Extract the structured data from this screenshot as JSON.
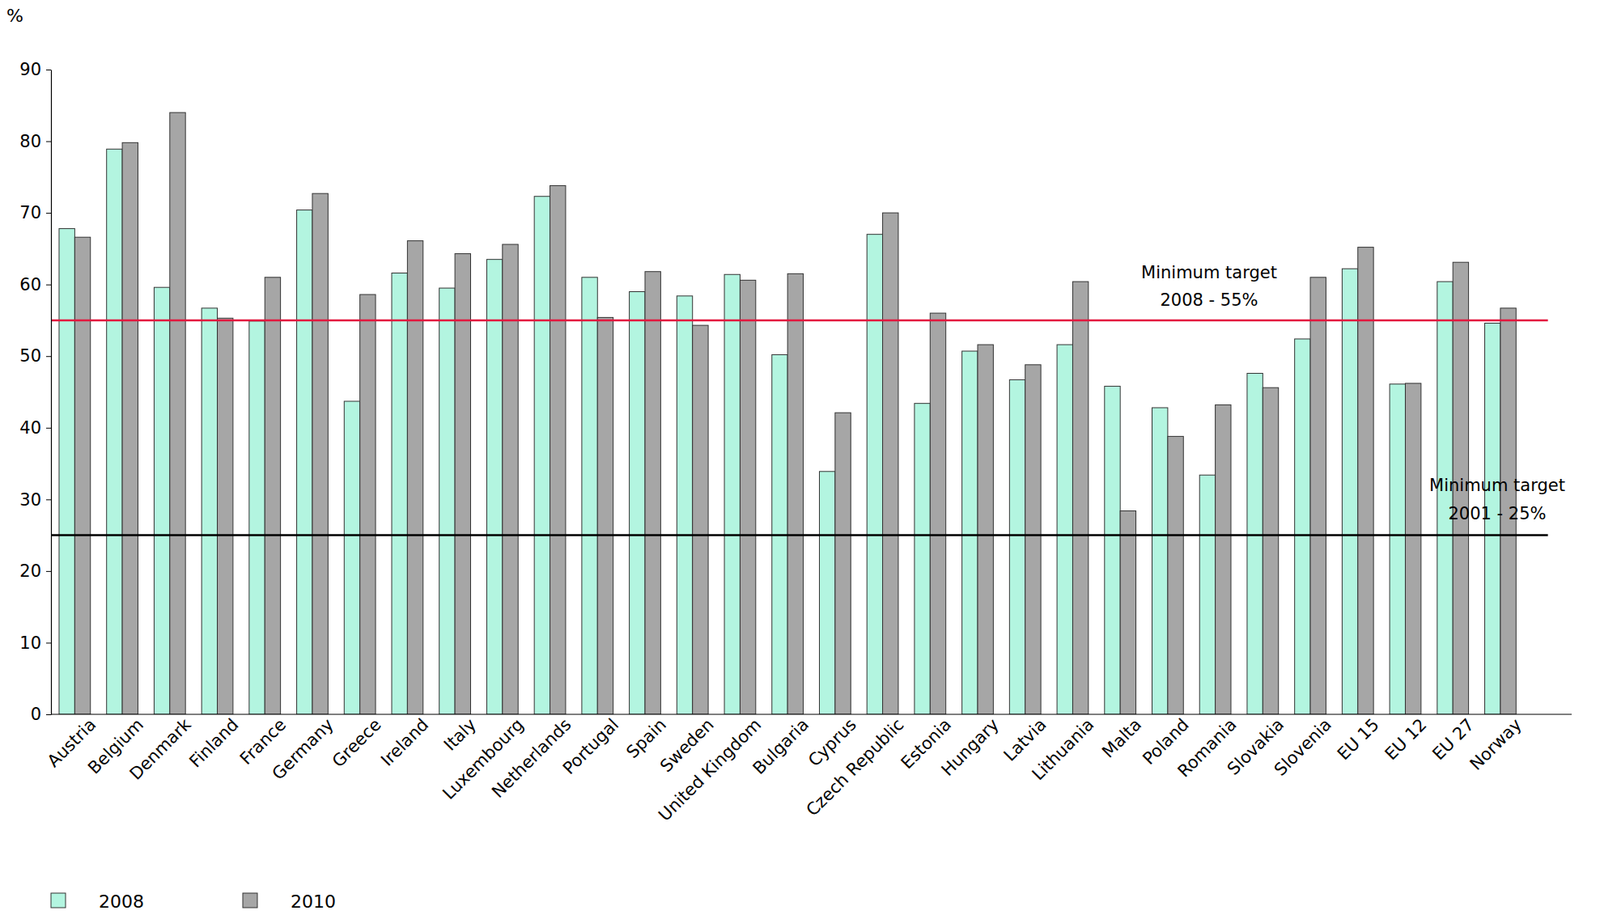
{
  "chart_data": {
    "type": "bar",
    "y_label": "%",
    "categories": [
      "Austria",
      "Belgium",
      "Denmark",
      "Finland",
      "France",
      "Germany",
      "Greece",
      "Ireland",
      "Italy",
      "Luxembourg",
      "Netherlands",
      "Portugal",
      "Spain",
      "Sweden",
      "United Kingdom",
      "Bulgaria",
      "Cyprus",
      "Czech Republic",
      "Estonia",
      "Hungary",
      "Latvia",
      "Lithuania",
      "Malta",
      "Poland",
      "Romania",
      "Slovakia",
      "Slovenia",
      "EU 15",
      "EU 12",
      "EU 27",
      "Norway",
      null
    ],
    "series": [
      {
        "name": "2008",
        "color": "#b3f5e0",
        "values": [
          67.8,
          78.9,
          59.6,
          56.7,
          54.9,
          70.4,
          43.7,
          61.6,
          59.5,
          63.5,
          72.3,
          61.0,
          59.0,
          58.4,
          61.4,
          50.2,
          33.9,
          67.0,
          43.4,
          50.7,
          46.7,
          51.6,
          45.8,
          42.8,
          33.4,
          47.6,
          52.4,
          62.2,
          46.1,
          60.4,
          54.6,
          null
        ]
      },
      {
        "name": "2010",
        "color": "#a6a6a6",
        "values": [
          66.6,
          79.8,
          84.0,
          55.3,
          61.0,
          72.7,
          58.6,
          66.1,
          64.3,
          65.6,
          73.8,
          55.4,
          61.8,
          54.3,
          60.6,
          61.5,
          42.1,
          70.0,
          56.0,
          51.6,
          48.8,
          60.4,
          28.4,
          38.8,
          43.2,
          45.6,
          61.0,
          65.2,
          46.2,
          63.1,
          56.7,
          null
        ]
      }
    ],
    "ylim": [
      0,
      90
    ],
    "yticks": [
      0,
      10,
      20,
      30,
      40,
      50,
      60,
      70,
      80,
      90
    ],
    "grid": false,
    "legend": "bottom left",
    "annotations": [
      {
        "value": 55,
        "color": "#e3173e",
        "text": [
          "Minimum target",
          "2008 - 55%"
        ]
      },
      {
        "value": 25,
        "color": "#000000",
        "text": [
          "Minimum target",
          "2001 - 25%"
        ]
      }
    ]
  }
}
